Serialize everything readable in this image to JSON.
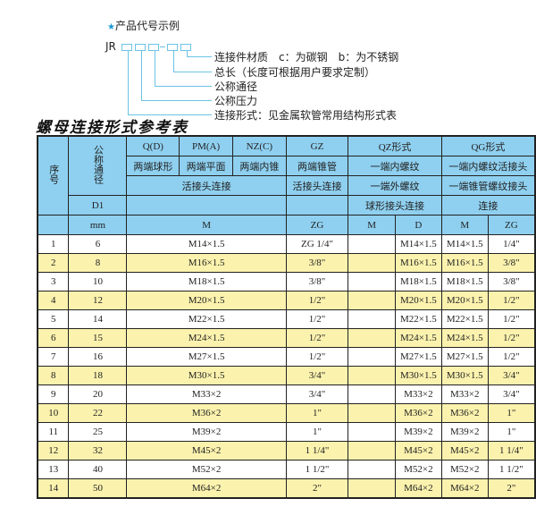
{
  "legend": {
    "caption": "产品代号示例",
    "prefix": "JR",
    "labels": [
      "连接件材质　c：为碳钢　b：为不锈钢",
      "总长（长度可根据用户要求定制）",
      "公称通径",
      "公称压力",
      "连接形式：见金属软管常用结构形式表"
    ]
  },
  "title": "螺母连接形式参考表",
  "header": {
    "seq": "序号",
    "nominal": "公称通径",
    "q": "Q(D)",
    "pm": "PM(A)",
    "nz": "NZ(C)",
    "gz": "GZ",
    "qz": "QZ形式",
    "qg": "QG形式",
    "q2": "两端球形",
    "pm2": "两端平面",
    "nz2": "两端内锥",
    "gz2": "两端锥管",
    "qz2": "一端内螺纹",
    "qg2": "一端内螺纹活接头",
    "qpmnz3": "活接头连接",
    "gz3": "活接头连接",
    "qz3": "一端外螺纹",
    "qg3": "一端锥管螺纹接头",
    "d1": "D1",
    "qz4": "球形接头连接",
    "qg4": "连接",
    "mm": "mm",
    "m": "M",
    "zg": "ZG",
    "qz_m": "M",
    "qz_d": "D",
    "qg_m": "M",
    "qg_zg": "ZG"
  },
  "rows": [
    {
      "no": "1",
      "dn": "6",
      "m": "M14×1.5",
      "zg": "ZG 1/4\"",
      "qzd": "M14×1.5",
      "qgm": "M14×1.5",
      "qgzg": "1/4\""
    },
    {
      "no": "2",
      "dn": "8",
      "m": "M16×1.5",
      "zg": "3/8\"",
      "qzd": "M16×1.5",
      "qgm": "M16×1.5",
      "qgzg": "3/8\""
    },
    {
      "no": "3",
      "dn": "10",
      "m": "M18×1.5",
      "zg": "3/8\"",
      "qzd": "M18×1.5",
      "qgm": "M18×1.5",
      "qgzg": "3/8\""
    },
    {
      "no": "4",
      "dn": "12",
      "m": "M20×1.5",
      "zg": "1/2\"",
      "qzd": "M20×1.5",
      "qgm": "M20×1.5",
      "qgzg": "1/2\""
    },
    {
      "no": "5",
      "dn": "14",
      "m": "M22×1.5",
      "zg": "1/2\"",
      "qzd": "M22×1.5",
      "qgm": "M22×1.5",
      "qgzg": "1/2\""
    },
    {
      "no": "6",
      "dn": "15",
      "m": "M24×1.5",
      "zg": "1/2\"",
      "qzd": "M24×1.5",
      "qgm": "M24×1.5",
      "qgzg": "1/2\""
    },
    {
      "no": "7",
      "dn": "16",
      "m": "M27×1.5",
      "zg": "1/2\"",
      "qzd": "M27×1.5",
      "qgm": "M27×1.5",
      "qgzg": "1/2\""
    },
    {
      "no": "8",
      "dn": "18",
      "m": "M30×1.5",
      "zg": "3/4\"",
      "qzd": "M30×1.5",
      "qgm": "M30×1.5",
      "qgzg": "3/4\""
    },
    {
      "no": "9",
      "dn": "20",
      "m": "M33×2",
      "zg": "3/4\"",
      "qzd": "M33×2",
      "qgm": "M33×2",
      "qgzg": "3/4\""
    },
    {
      "no": "10",
      "dn": "22",
      "m": "M36×2",
      "zg": "1\"",
      "qzd": "M36×2",
      "qgm": "M36×2",
      "qgzg": "1\""
    },
    {
      "no": "11",
      "dn": "25",
      "m": "M39×2",
      "zg": "1\"",
      "qzd": "M39×2",
      "qgm": "M39×2",
      "qgzg": "1\""
    },
    {
      "no": "12",
      "dn": "32",
      "m": "M45×2",
      "zg": "1 1/4\"",
      "qzd": "M45×2",
      "qgm": "M45×2",
      "qgzg": "1 1/4\""
    },
    {
      "no": "13",
      "dn": "40",
      "m": "M52×2",
      "zg": "1 1/2\"",
      "qzd": "M52×2",
      "qgm": "M52×2",
      "qgzg": "1 1/2\""
    },
    {
      "no": "14",
      "dn": "50",
      "m": "M64×2",
      "zg": "2\"",
      "qzd": "M64×2",
      "qgm": "M64×2",
      "qgzg": "2\""
    }
  ],
  "colors": {
    "header": "#8fd0f0",
    "alt_row": "#fbf2ae",
    "line": "#6cc3e6",
    "star": "#1a9ad6"
  }
}
